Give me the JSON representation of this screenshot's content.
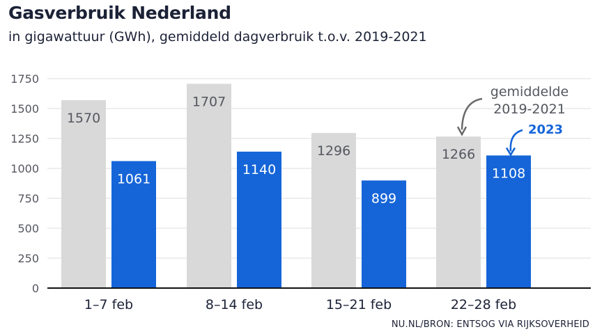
{
  "chart_data": {
    "type": "bar",
    "title": "Gasverbruik Nederland",
    "subtitle": "in gigawattuur (GWh), gemiddeld dagverbruik t.o.v. 2019-2021",
    "categories": [
      "1–7 feb",
      "8–14 feb",
      "15–21 feb",
      "22–28 feb"
    ],
    "series": [
      {
        "values": [
          1570,
          1707,
          1296,
          1266
        ],
        "color": "#d9d9d9"
      },
      {
        "values": [
          1061,
          1140,
          899,
          1108
        ],
        "color": "#1565d8"
      }
    ],
    "yticks": [
      "0",
      "250",
      "500",
      "750",
      "1000",
      "1250",
      "1500",
      "1750"
    ],
    "ylim": [
      0,
      1750
    ],
    "grid": true,
    "annotations": [
      {
        "text_lines": [
          "gemiddelde",
          "2019-2021"
        ],
        "series_index": 0
      },
      {
        "text_lines": [
          "2023"
        ],
        "series_index": 1
      }
    ],
    "source": "NU.NL/BRON: ENTSOG VIA RIJKSOVERHEID"
  }
}
